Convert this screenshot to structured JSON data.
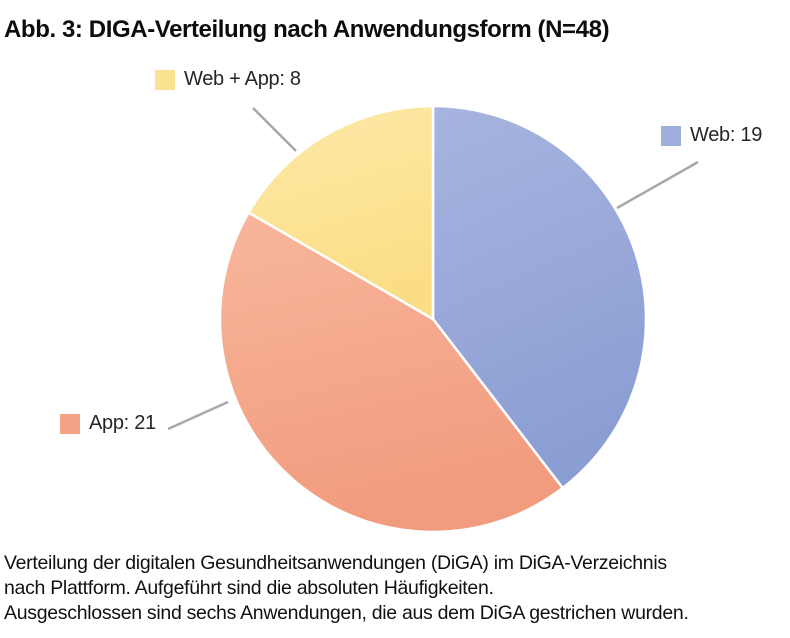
{
  "title": "Abb. 3: DIGA-Verteilung nach Anwendungsform (N=48)",
  "chart_data": {
    "type": "pie",
    "title": "Abb. 3: DIGA-Verteilung nach Anwendungsform (N=48)",
    "total": 48,
    "categories": [
      "Web",
      "App",
      "Web + App"
    ],
    "values": [
      19,
      21,
      8
    ],
    "series": [
      {
        "name": "Web",
        "value": 19,
        "label": "Web: 19",
        "color": "#9FAEDC",
        "color_light": "#A7B4DF",
        "color_dark": "#8B9ED3"
      },
      {
        "name": "App",
        "value": 21,
        "label": "App: 21",
        "color": "#F2A285",
        "color_light": "#F8B69D",
        "color_dark": "#F19C7E"
      },
      {
        "name": "Web + App",
        "value": 8,
        "label": "Web + App: 8",
        "color": "#FBE192",
        "color_light": "#FDE9A8",
        "color_dark": "#FBDD85"
      }
    ],
    "start_angle_deg": -90,
    "direction": "clockwise",
    "legend_position": "callouts",
    "callout_line_color": "#A8A8A8"
  },
  "caption": {
    "line1": "Verteilung der digitalen Gesundheitsanwendungen (DiGA) im DiGA-Verzeichnis",
    "line2": "nach Plattform. Aufgeführt sind die absoluten Häufigkeiten.",
    "line3": "Ausgeschlossen sind sechs Anwendungen, die aus dem DiGA gestrichen wurden."
  }
}
